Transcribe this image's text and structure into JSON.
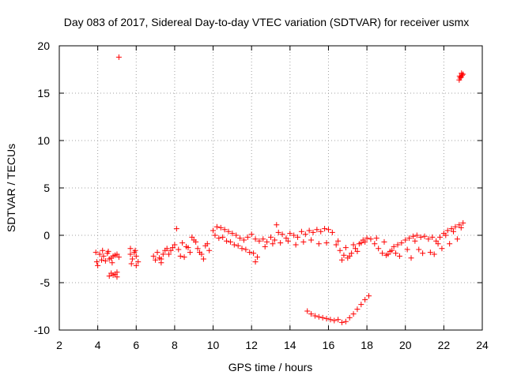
{
  "chart_data": {
    "type": "scatter",
    "title": "Day 083 of 2017, Sidereal Day-to-day VTEC variation (SDTVAR) for receiver usmx",
    "xlabel": "GPS time / hours",
    "ylabel": "SDTVAR / TECUs",
    "xlim": [
      2,
      24
    ],
    "ylim": [
      -10,
      20
    ],
    "xticks": [
      "2",
      "4",
      "6",
      "8",
      "10",
      "12",
      "14",
      "16",
      "18",
      "20",
      "22",
      "24"
    ],
    "yticks": [
      "-10",
      "-5",
      "0",
      "5",
      "10",
      "15",
      "20"
    ],
    "grid": true,
    "marker": "+",
    "color": "#ff0000",
    "series": [
      {
        "name": "SDTVAR",
        "x": [
          3.9,
          4.1,
          4.3,
          4.5,
          4.7,
          4.9,
          5.1,
          3.95,
          4.2,
          4.4,
          4.6,
          4.8,
          5.0,
          4.0,
          4.25,
          4.55,
          4.75,
          4.6,
          4.7,
          4.8,
          4.9,
          5.0,
          5.0,
          5.7,
          5.8,
          5.9,
          6.0,
          6.1,
          5.75,
          5.95,
          5.7,
          6.0,
          6.9,
          7.1,
          7.3,
          7.5,
          7.7,
          7.9,
          7.0,
          7.4,
          7.8,
          7.2,
          7.6,
          7.3,
          8.0,
          8.2,
          8.4,
          8.6,
          8.8,
          9.0,
          9.2,
          9.4,
          9.6,
          9.8,
          8.1,
          8.5,
          8.9,
          9.3,
          9.7,
          8.3,
          8.7,
          9.1,
          9.5,
          10.0,
          10.2,
          10.4,
          10.6,
          10.8,
          11.0,
          11.2,
          11.4,
          11.6,
          11.8,
          12.0,
          12.2,
          12.4,
          10.3,
          10.7,
          11.1,
          11.5,
          11.9,
          12.3,
          10.1,
          10.5,
          10.9,
          11.3,
          11.7,
          12.1,
          12.2,
          12.6,
          12.8,
          13.0,
          13.2,
          13.4,
          13.6,
          13.8,
          14.0,
          14.2,
          14.4,
          14.6,
          14.8,
          15.0,
          15.2,
          15.4,
          15.6,
          15.8,
          16.0,
          16.2,
          12.7,
          13.1,
          13.5,
          13.9,
          14.3,
          14.7,
          15.1,
          15.5,
          15.9,
          13.3,
          16.4,
          16.6,
          16.8,
          17.0,
          17.2,
          17.4,
          17.6,
          17.8,
          18.0,
          16.5,
          16.9,
          17.3,
          17.7,
          16.7,
          17.1,
          17.5,
          17.9,
          18.2,
          18.4,
          18.6,
          18.8,
          19.0,
          19.2,
          19.4,
          19.6,
          19.8,
          20.0,
          20.2,
          20.4,
          20.6,
          20.8,
          21.0,
          21.2,
          21.4,
          18.5,
          18.9,
          19.3,
          19.7,
          20.1,
          20.5,
          20.9,
          21.3,
          19.1,
          19.5,
          20.3,
          20.7,
          21.6,
          21.8,
          22.0,
          22.2,
          22.4,
          22.6,
          22.8,
          23.0,
          21.7,
          22.1,
          22.5,
          22.9,
          21.5,
          21.9,
          22.3,
          22.7,
          14.9,
          15.1,
          15.3,
          15.5,
          15.7,
          15.9,
          16.1,
          16.3,
          16.5,
          16.7,
          16.9,
          17.1,
          17.3,
          17.5,
          17.7,
          17.9,
          18.1,
          5.1,
          22.8,
          22.85,
          22.9,
          22.95,
          23.0,
          22.82,
          22.92
        ],
        "y": [
          -1.8,
          -2.0,
          -2.2,
          -1.9,
          -2.4,
          -2.1,
          -2.3,
          -2.8,
          -2.6,
          -2.7,
          -2.5,
          -2.2,
          -2.0,
          -3.2,
          -1.6,
          -1.7,
          -2.9,
          -4.3,
          -4.0,
          -4.2,
          -4.1,
          -4.4,
          -3.9,
          -2.0,
          -2.5,
          -1.8,
          -2.2,
          -2.8,
          -3.0,
          -1.6,
          -1.4,
          -3.2,
          -2.2,
          -1.8,
          -2.5,
          -1.6,
          -2.0,
          -1.3,
          -2.6,
          -2.0,
          -1.6,
          -2.4,
          -1.4,
          -2.9,
          -1.0,
          -1.5,
          -0.8,
          -1.2,
          -1.8,
          -0.5,
          -1.4,
          -2.0,
          -1.1,
          -1.6,
          0.7,
          -2.3,
          -0.2,
          -1.8,
          -0.9,
          -2.2,
          -1.3,
          -0.7,
          -2.5,
          0.5,
          0.9,
          0.8,
          0.6,
          0.4,
          0.2,
          0.0,
          -0.3,
          -0.5,
          -0.2,
          0.1,
          -0.4,
          -0.6,
          -0.3,
          -0.6,
          -1.0,
          -1.4,
          -1.8,
          -2.3,
          0.0,
          -0.2,
          -0.7,
          -1.1,
          -1.5,
          -1.9,
          -2.8,
          -0.4,
          -0.7,
          -0.2,
          -0.5,
          0.3,
          0.1,
          -0.3,
          0.2,
          0.0,
          -0.2,
          0.4,
          0.1,
          0.5,
          0.3,
          0.6,
          0.4,
          0.7,
          0.6,
          0.3,
          -1.2,
          -0.9,
          -0.8,
          -0.6,
          -1.0,
          -0.7,
          -0.5,
          -0.9,
          -0.8,
          1.1,
          -1.0,
          -1.6,
          -2.1,
          -2.4,
          -1.9,
          -1.4,
          -0.9,
          -0.5,
          -0.3,
          -0.6,
          -1.3,
          -1.0,
          -0.8,
          -2.6,
          -2.2,
          -1.7,
          -0.7,
          -0.4,
          -0.9,
          -1.4,
          -1.9,
          -2.1,
          -1.7,
          -1.2,
          -1.0,
          -0.8,
          -0.5,
          -0.3,
          -0.1,
          0.0,
          -0.2,
          -0.1,
          -0.4,
          -0.2,
          -0.3,
          -0.7,
          -1.6,
          -2.2,
          -1.5,
          -0.6,
          -1.9,
          -1.8,
          -2.0,
          -1.9,
          -2.4,
          -1.5,
          -0.6,
          -0.2,
          0.2,
          0.5,
          0.7,
          0.9,
          1.1,
          1.3,
          -0.9,
          0.0,
          0.4,
          0.8,
          -2.0,
          -1.4,
          -0.9,
          -0.4,
          -8.0,
          -8.3,
          -8.5,
          -8.6,
          -8.7,
          -8.8,
          -8.9,
          -9.0,
          -8.9,
          -9.2,
          -9.1,
          -8.7,
          -8.3,
          -7.8,
          -7.3,
          -6.8,
          -6.4,
          18.8,
          16.4,
          16.6,
          16.7,
          16.9,
          17.0,
          16.8,
          17.1
        ]
      }
    ]
  }
}
